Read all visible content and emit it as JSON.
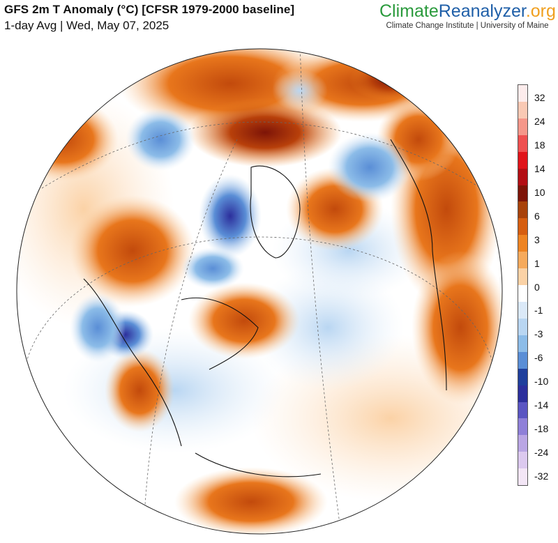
{
  "header": {
    "title": "GFS 2m T Anomaly (°C) [CFSR 1979-2000 baseline]",
    "subtitle": "1-day Avg | Wed, May 07, 2025"
  },
  "brand": {
    "part1": "Climate",
    "part2": "Reanalyzer",
    "part3": ".org",
    "part1_color": "#2a9a3c",
    "part2_color": "#1f5fa8",
    "part3_color": "#f0a020",
    "tagline": "Climate Change Institute | University of Maine"
  },
  "legend": {
    "labels": [
      "32",
      "24",
      "18",
      "14",
      "10",
      "6",
      "3",
      "1",
      "0",
      "-1",
      "-3",
      "-6",
      "-10",
      "-14",
      "-18",
      "-24",
      "-32"
    ],
    "colors": [
      "#fdecec",
      "#f9c9b4",
      "#f5978a",
      "#ef5050",
      "#e0141a",
      "#b30e14",
      "#7d1408",
      "#a8420a",
      "#d65e10",
      "#ee8422",
      "#f6aa5c",
      "#fbd2a6",
      "#ffffff",
      "#dbe9f8",
      "#b9d6f2",
      "#8cbce8",
      "#5a8ed6",
      "#1f3f9c",
      "#2c2f9c",
      "#5a55c2",
      "#8f80d8",
      "#baa6e4",
      "#dcc9ef",
      "#f3e6f6"
    ]
  },
  "map": {
    "ocean_color": "#ffffff",
    "warm_color": "#ee8422",
    "cool_color": "#8cbce8"
  }
}
